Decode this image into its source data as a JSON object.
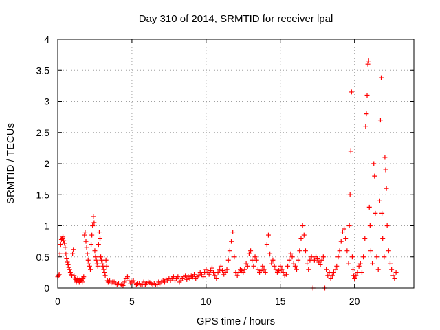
{
  "chart_data": {
    "type": "scatter",
    "title": "Day 310 of 2014, SRMTID for receiver lpal",
    "xlabel": "GPS time / hours",
    "ylabel": "SRMTID / TECUs",
    "xlim": [
      0,
      24
    ],
    "ylim": [
      0,
      4
    ],
    "xticks": [
      0,
      5,
      10,
      15,
      20
    ],
    "xtick_labels": [
      "0",
      "5",
      "10",
      "15",
      "20"
    ],
    "yticks": [
      0,
      0.5,
      1,
      1.5,
      2,
      2.5,
      3,
      3.5,
      4
    ],
    "ytick_labels": [
      "0",
      "0.5",
      "1",
      "1.5",
      "2",
      "2.5",
      "3",
      "3.5",
      "4"
    ],
    "grid": true,
    "marker": "+",
    "series": [
      {
        "name": "SRMTID",
        "color": "#ff0000",
        "points": [
          [
            0.0,
            0.18
          ],
          [
            0.05,
            0.2
          ],
          [
            0.1,
            0.22
          ],
          [
            0.15,
            0.55
          ],
          [
            0.2,
            0.7
          ],
          [
            0.25,
            0.78
          ],
          [
            0.3,
            0.8
          ],
          [
            0.35,
            0.82
          ],
          [
            0.4,
            0.76
          ],
          [
            0.45,
            0.72
          ],
          [
            0.5,
            0.65
          ],
          [
            0.55,
            0.55
          ],
          [
            0.6,
            0.48
          ],
          [
            0.65,
            0.42
          ],
          [
            0.7,
            0.38
          ],
          [
            0.75,
            0.33
          ],
          [
            0.8,
            0.3
          ],
          [
            0.85,
            0.25
          ],
          [
            0.9,
            0.22
          ],
          [
            0.95,
            0.2
          ],
          [
            1.0,
            0.55
          ],
          [
            1.05,
            0.62
          ],
          [
            1.1,
            0.2
          ],
          [
            1.15,
            0.16
          ],
          [
            1.2,
            0.14
          ],
          [
            1.25,
            0.1
          ],
          [
            1.3,
            0.12
          ],
          [
            1.35,
            0.15
          ],
          [
            1.4,
            0.12
          ],
          [
            1.45,
            0.1
          ],
          [
            1.5,
            0.14
          ],
          [
            1.55,
            0.12
          ],
          [
            1.6,
            0.13
          ],
          [
            1.65,
            0.1
          ],
          [
            1.7,
            0.15
          ],
          [
            1.75,
            0.18
          ],
          [
            1.8,
            0.85
          ],
          [
            1.85,
            0.9
          ],
          [
            1.9,
            0.75
          ],
          [
            1.95,
            0.65
          ],
          [
            2.0,
            0.55
          ],
          [
            2.05,
            0.45
          ],
          [
            2.1,
            0.4
          ],
          [
            2.15,
            0.35
          ],
          [
            2.2,
            0.3
          ],
          [
            2.25,
            0.7
          ],
          [
            2.3,
            0.85
          ],
          [
            2.35,
            1.0
          ],
          [
            2.4,
            1.15
          ],
          [
            2.45,
            1.05
          ],
          [
            2.5,
            0.6
          ],
          [
            2.55,
            0.5
          ],
          [
            2.6,
            0.45
          ],
          [
            2.65,
            0.4
          ],
          [
            2.7,
            0.35
          ],
          [
            2.75,
            0.7
          ],
          [
            2.8,
            0.9
          ],
          [
            2.85,
            0.8
          ],
          [
            2.9,
            0.5
          ],
          [
            2.95,
            0.45
          ],
          [
            3.0,
            0.4
          ],
          [
            3.05,
            0.35
          ],
          [
            3.1,
            0.3
          ],
          [
            3.15,
            0.25
          ],
          [
            3.2,
            0.2
          ],
          [
            3.25,
            0.45
          ],
          [
            3.3,
            0.35
          ],
          [
            3.35,
            0.12
          ],
          [
            3.4,
            0.1
          ],
          [
            3.5,
            0.12
          ],
          [
            3.6,
            0.08
          ],
          [
            3.7,
            0.1
          ],
          [
            3.8,
            0.1
          ],
          [
            3.9,
            0.08
          ],
          [
            4.0,
            0.06
          ],
          [
            4.1,
            0.08
          ],
          [
            4.2,
            0.05
          ],
          [
            4.3,
            0.06
          ],
          [
            4.4,
            0.04
          ],
          [
            4.5,
            0.1
          ],
          [
            4.6,
            0.15
          ],
          [
            4.7,
            0.18
          ],
          [
            4.8,
            0.12
          ],
          [
            4.9,
            0.08
          ],
          [
            5.0,
            0.1
          ],
          [
            5.1,
            0.12
          ],
          [
            5.2,
            0.08
          ],
          [
            5.3,
            0.06
          ],
          [
            5.4,
            0.07
          ],
          [
            5.5,
            0.08
          ],
          [
            5.6,
            0.05
          ],
          [
            5.7,
            0.06
          ],
          [
            5.8,
            0.1
          ],
          [
            5.9,
            0.06
          ],
          [
            6.0,
            0.08
          ],
          [
            6.1,
            0.1
          ],
          [
            6.2,
            0.09
          ],
          [
            6.3,
            0.07
          ],
          [
            6.4,
            0.06
          ],
          [
            6.5,
            0.08
          ],
          [
            6.6,
            0.05
          ],
          [
            6.7,
            0.06
          ],
          [
            6.8,
            0.1
          ],
          [
            6.9,
            0.08
          ],
          [
            7.0,
            0.1
          ],
          [
            7.1,
            0.12
          ],
          [
            7.2,
            0.1
          ],
          [
            7.3,
            0.14
          ],
          [
            7.4,
            0.12
          ],
          [
            7.5,
            0.15
          ],
          [
            7.6,
            0.12
          ],
          [
            7.7,
            0.15
          ],
          [
            7.8,
            0.18
          ],
          [
            7.9,
            0.12
          ],
          [
            8.0,
            0.15
          ],
          [
            8.1,
            0.18
          ],
          [
            8.2,
            0.1
          ],
          [
            8.3,
            0.12
          ],
          [
            8.4,
            0.15
          ],
          [
            8.5,
            0.18
          ],
          [
            8.6,
            0.2
          ],
          [
            8.7,
            0.14
          ],
          [
            8.8,
            0.18
          ],
          [
            8.9,
            0.15
          ],
          [
            9.0,
            0.2
          ],
          [
            9.1,
            0.18
          ],
          [
            9.2,
            0.22
          ],
          [
            9.3,
            0.15
          ],
          [
            9.4,
            0.18
          ],
          [
            9.5,
            0.2
          ],
          [
            9.6,
            0.25
          ],
          [
            9.7,
            0.22
          ],
          [
            9.8,
            0.18
          ],
          [
            9.9,
            0.25
          ],
          [
            10.0,
            0.3
          ],
          [
            10.1,
            0.25
          ],
          [
            10.2,
            0.22
          ],
          [
            10.3,
            0.28
          ],
          [
            10.4,
            0.32
          ],
          [
            10.5,
            0.25
          ],
          [
            10.6,
            0.2
          ],
          [
            10.7,
            0.15
          ],
          [
            10.8,
            0.25
          ],
          [
            10.9,
            0.3
          ],
          [
            11.0,
            0.35
          ],
          [
            11.1,
            0.28
          ],
          [
            11.2,
            0.22
          ],
          [
            11.3,
            0.25
          ],
          [
            11.4,
            0.3
          ],
          [
            11.5,
            0.45
          ],
          [
            11.6,
            0.6
          ],
          [
            11.7,
            0.75
          ],
          [
            11.8,
            0.9
          ],
          [
            11.9,
            0.5
          ],
          [
            12.0,
            0.25
          ],
          [
            12.1,
            0.2
          ],
          [
            12.2,
            0.25
          ],
          [
            12.3,
            0.3
          ],
          [
            12.4,
            0.28
          ],
          [
            12.5,
            0.25
          ],
          [
            12.6,
            0.3
          ],
          [
            12.7,
            0.4
          ],
          [
            12.8,
            0.35
          ],
          [
            12.9,
            0.55
          ],
          [
            13.0,
            0.6
          ],
          [
            13.1,
            0.45
          ],
          [
            13.2,
            0.35
          ],
          [
            13.3,
            0.5
          ],
          [
            13.4,
            0.45
          ],
          [
            13.5,
            0.3
          ],
          [
            13.6,
            0.25
          ],
          [
            13.7,
            0.28
          ],
          [
            13.8,
            0.35
          ],
          [
            13.9,
            0.3
          ],
          [
            14.0,
            0.25
          ],
          [
            14.1,
            0.7
          ],
          [
            14.2,
            0.85
          ],
          [
            14.3,
            0.55
          ],
          [
            14.4,
            0.4
          ],
          [
            14.5,
            0.45
          ],
          [
            14.6,
            0.35
          ],
          [
            14.7,
            0.3
          ],
          [
            14.8,
            0.25
          ],
          [
            14.9,
            0.28
          ],
          [
            15.0,
            0.35
          ],
          [
            15.1,
            0.3
          ],
          [
            15.2,
            0.25
          ],
          [
            15.3,
            0.2
          ],
          [
            15.4,
            0.22
          ],
          [
            15.5,
            0.35
          ],
          [
            15.6,
            0.45
          ],
          [
            15.7,
            0.55
          ],
          [
            15.8,
            0.5
          ],
          [
            15.9,
            0.4
          ],
          [
            16.0,
            0.35
          ],
          [
            16.1,
            0.3
          ],
          [
            16.2,
            0.45
          ],
          [
            16.3,
            0.6
          ],
          [
            16.4,
            0.8
          ],
          [
            16.5,
            1.0
          ],
          [
            16.6,
            0.85
          ],
          [
            16.7,
            0.6
          ],
          [
            16.8,
            0.4
          ],
          [
            16.9,
            0.3
          ],
          [
            17.0,
            0.45
          ],
          [
            17.1,
            0.5
          ],
          [
            17.2,
            0.0
          ],
          [
            17.3,
            0.45
          ],
          [
            17.4,
            0.5
          ],
          [
            17.5,
            0.48
          ],
          [
            17.6,
            0.42
          ],
          [
            17.7,
            0.38
          ],
          [
            17.8,
            0.45
          ],
          [
            17.9,
            0.5
          ],
          [
            18.0,
            0.0
          ],
          [
            18.1,
            0.3
          ],
          [
            18.2,
            0.2
          ],
          [
            18.3,
            0.25
          ],
          [
            18.4,
            0.15
          ],
          [
            18.5,
            0.2
          ],
          [
            18.6,
            0.25
          ],
          [
            18.7,
            0.3
          ],
          [
            18.8,
            0.35
          ],
          [
            18.9,
            0.5
          ],
          [
            19.0,
            0.6
          ],
          [
            19.1,
            0.75
          ],
          [
            19.2,
            0.9
          ],
          [
            19.3,
            0.95
          ],
          [
            19.4,
            0.8
          ],
          [
            19.5,
            0.6
          ],
          [
            19.6,
            0.4
          ],
          [
            19.65,
            1.0
          ],
          [
            19.7,
            1.5
          ],
          [
            19.75,
            2.2
          ],
          [
            19.8,
            3.15
          ],
          [
            19.85,
            0.5
          ],
          [
            19.9,
            0.3
          ],
          [
            19.95,
            0.2
          ],
          [
            20.0,
            0.15
          ],
          [
            20.1,
            0.2
          ],
          [
            20.2,
            0.25
          ],
          [
            20.3,
            0.35
          ],
          [
            20.4,
            0.4
          ],
          [
            20.5,
            0.25
          ],
          [
            20.6,
            0.5
          ],
          [
            20.7,
            0.8
          ],
          [
            20.75,
            2.6
          ],
          [
            20.8,
            2.8
          ],
          [
            20.85,
            3.1
          ],
          [
            20.9,
            3.6
          ],
          [
            20.95,
            3.65
          ],
          [
            21.0,
            1.3
          ],
          [
            21.05,
            1.0
          ],
          [
            21.1,
            0.6
          ],
          [
            21.2,
            0.4
          ],
          [
            21.3,
            2.0
          ],
          [
            21.35,
            1.8
          ],
          [
            21.4,
            1.2
          ],
          [
            21.5,
            0.5
          ],
          [
            21.6,
            0.3
          ],
          [
            21.7,
            1.4
          ],
          [
            21.75,
            2.7
          ],
          [
            21.8,
            3.38
          ],
          [
            21.85,
            1.2
          ],
          [
            21.9,
            0.8
          ],
          [
            22.0,
            0.5
          ],
          [
            22.05,
            2.1
          ],
          [
            22.1,
            1.9
          ],
          [
            22.15,
            1.6
          ],
          [
            22.2,
            1.0
          ],
          [
            22.3,
            0.6
          ],
          [
            22.4,
            0.4
          ],
          [
            22.5,
            0.3
          ],
          [
            22.6,
            0.2
          ],
          [
            22.7,
            0.15
          ],
          [
            22.8,
            0.25
          ]
        ]
      }
    ]
  }
}
